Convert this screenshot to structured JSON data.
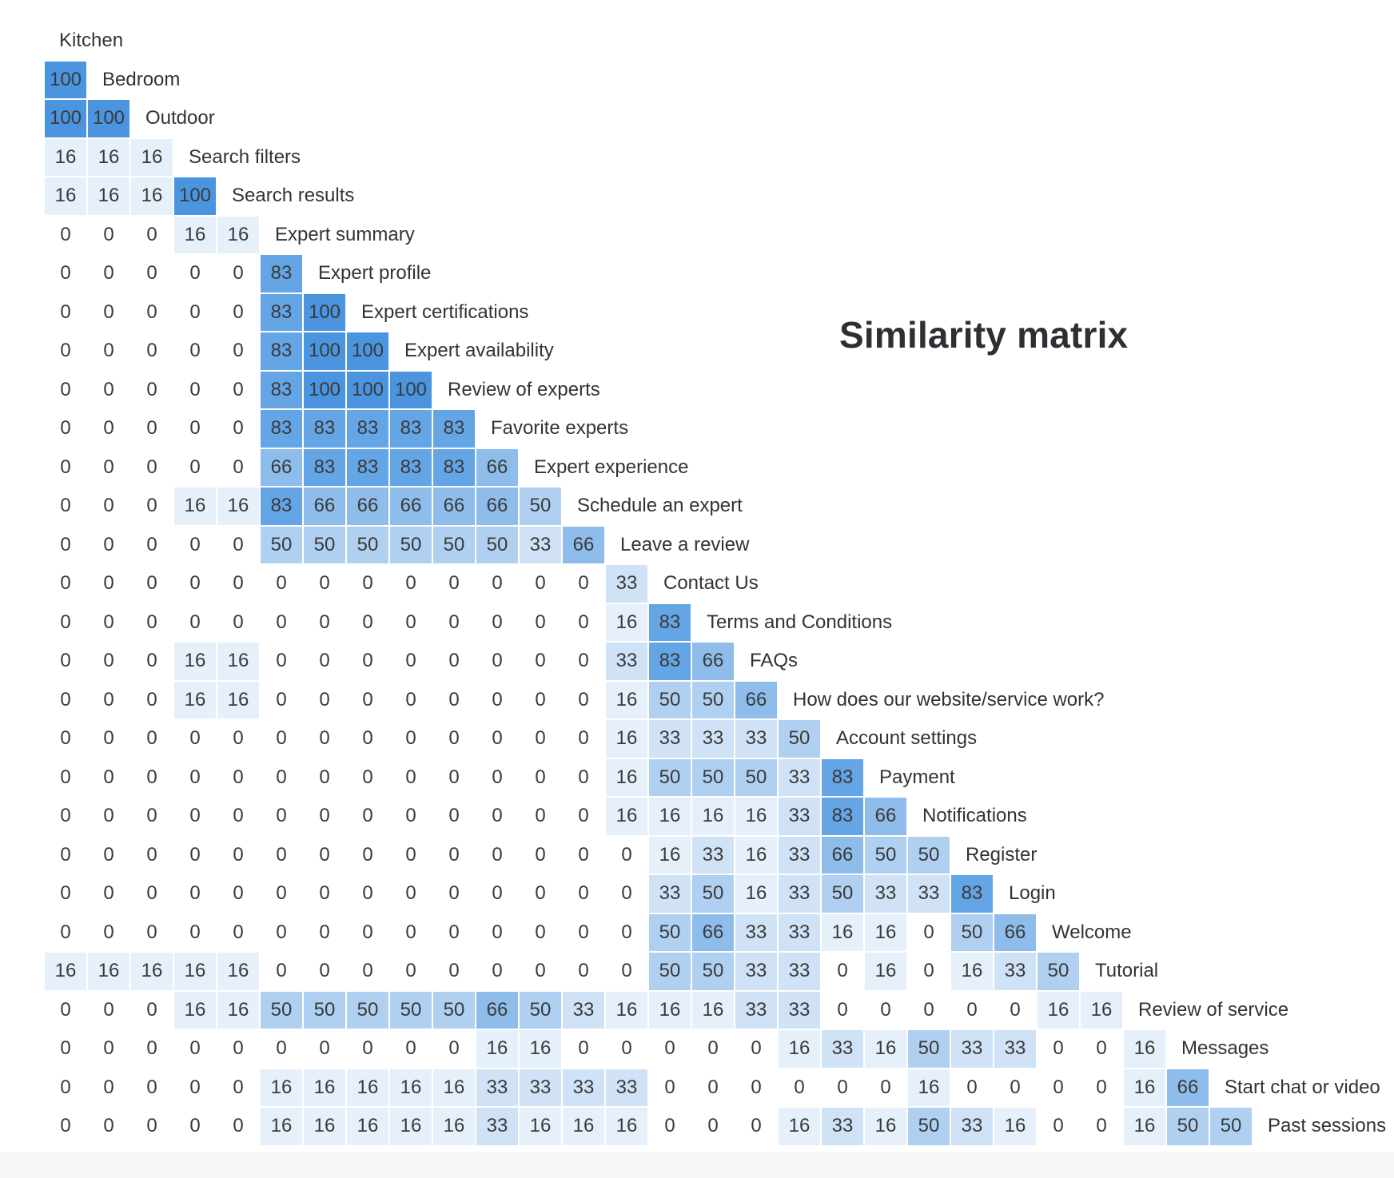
{
  "chart_data": {
    "type": "heatmap",
    "title": "Similarity matrix",
    "labels": [
      "Kitchen",
      "Bedroom",
      "Outdoor",
      "Search filters",
      "Search results",
      "Expert summary",
      "Expert profile",
      "Expert certifications",
      "Expert availability",
      "Review of experts",
      "Favorite experts",
      "Expert experience",
      "Schedule an expert",
      "Leave a review",
      "Contact Us",
      "Terms and Conditions",
      "FAQs",
      "How does our website/service work?",
      "Account settings",
      "Payment",
      "Notifications",
      "Register",
      "Login",
      "Welcome",
      "Tutorial",
      "Review of service",
      "Messages",
      "Start chat or video",
      "Past sessions"
    ],
    "matrix": [
      [],
      [
        100
      ],
      [
        100,
        100
      ],
      [
        16,
        16,
        16
      ],
      [
        16,
        16,
        16,
        100
      ],
      [
        0,
        0,
        0,
        16,
        16
      ],
      [
        0,
        0,
        0,
        0,
        0,
        83
      ],
      [
        0,
        0,
        0,
        0,
        0,
        83,
        100
      ],
      [
        0,
        0,
        0,
        0,
        0,
        83,
        100,
        100
      ],
      [
        0,
        0,
        0,
        0,
        0,
        83,
        100,
        100,
        100
      ],
      [
        0,
        0,
        0,
        0,
        0,
        83,
        83,
        83,
        83,
        83
      ],
      [
        0,
        0,
        0,
        0,
        0,
        66,
        83,
        83,
        83,
        83,
        66
      ],
      [
        0,
        0,
        0,
        16,
        16,
        83,
        66,
        66,
        66,
        66,
        66,
        50
      ],
      [
        0,
        0,
        0,
        0,
        0,
        50,
        50,
        50,
        50,
        50,
        50,
        33,
        66
      ],
      [
        0,
        0,
        0,
        0,
        0,
        0,
        0,
        0,
        0,
        0,
        0,
        0,
        0,
        33
      ],
      [
        0,
        0,
        0,
        0,
        0,
        0,
        0,
        0,
        0,
        0,
        0,
        0,
        0,
        16,
        83
      ],
      [
        0,
        0,
        0,
        16,
        16,
        0,
        0,
        0,
        0,
        0,
        0,
        0,
        0,
        33,
        83,
        66
      ],
      [
        0,
        0,
        0,
        16,
        16,
        0,
        0,
        0,
        0,
        0,
        0,
        0,
        0,
        16,
        50,
        50,
        66
      ],
      [
        0,
        0,
        0,
        0,
        0,
        0,
        0,
        0,
        0,
        0,
        0,
        0,
        0,
        16,
        33,
        33,
        33,
        50
      ],
      [
        0,
        0,
        0,
        0,
        0,
        0,
        0,
        0,
        0,
        0,
        0,
        0,
        0,
        16,
        50,
        50,
        50,
        33,
        83
      ],
      [
        0,
        0,
        0,
        0,
        0,
        0,
        0,
        0,
        0,
        0,
        0,
        0,
        0,
        16,
        16,
        16,
        16,
        33,
        83,
        66
      ],
      [
        0,
        0,
        0,
        0,
        0,
        0,
        0,
        0,
        0,
        0,
        0,
        0,
        0,
        0,
        16,
        33,
        16,
        33,
        66,
        50,
        50
      ],
      [
        0,
        0,
        0,
        0,
        0,
        0,
        0,
        0,
        0,
        0,
        0,
        0,
        0,
        0,
        33,
        50,
        16,
        33,
        50,
        33,
        33,
        83
      ],
      [
        0,
        0,
        0,
        0,
        0,
        0,
        0,
        0,
        0,
        0,
        0,
        0,
        0,
        0,
        50,
        66,
        33,
        33,
        16,
        16,
        0,
        50,
        66
      ],
      [
        16,
        16,
        16,
        16,
        16,
        0,
        0,
        0,
        0,
        0,
        0,
        0,
        0,
        0,
        50,
        50,
        33,
        33,
        0,
        16,
        0,
        16,
        33,
        50
      ],
      [
        0,
        0,
        0,
        16,
        16,
        50,
        50,
        50,
        50,
        50,
        66,
        50,
        33,
        16,
        16,
        16,
        33,
        33,
        0,
        0,
        0,
        0,
        0,
        16,
        16
      ],
      [
        0,
        0,
        0,
        0,
        0,
        0,
        0,
        0,
        0,
        0,
        16,
        16,
        0,
        0,
        0,
        0,
        0,
        16,
        33,
        16,
        50,
        33,
        33,
        0,
        0,
        16
      ],
      [
        0,
        0,
        0,
        0,
        0,
        16,
        16,
        16,
        16,
        16,
        33,
        33,
        33,
        33,
        0,
        0,
        0,
        0,
        0,
        0,
        16,
        0,
        0,
        0,
        0,
        16,
        66
      ],
      [
        0,
        0,
        0,
        0,
        0,
        16,
        16,
        16,
        16,
        16,
        33,
        16,
        16,
        16,
        0,
        0,
        0,
        16,
        33,
        16,
        50,
        33,
        16,
        0,
        0,
        16,
        50,
        50
      ]
    ],
    "color_scale": {
      "100": "#4b94e0",
      "83": "#64a5e6",
      "66": "#8ebceb",
      "50": "#b0d0f1",
      "33": "#cfe2f6",
      "16": "#e5f0fb",
      "0": "#ffffff"
    }
  }
}
